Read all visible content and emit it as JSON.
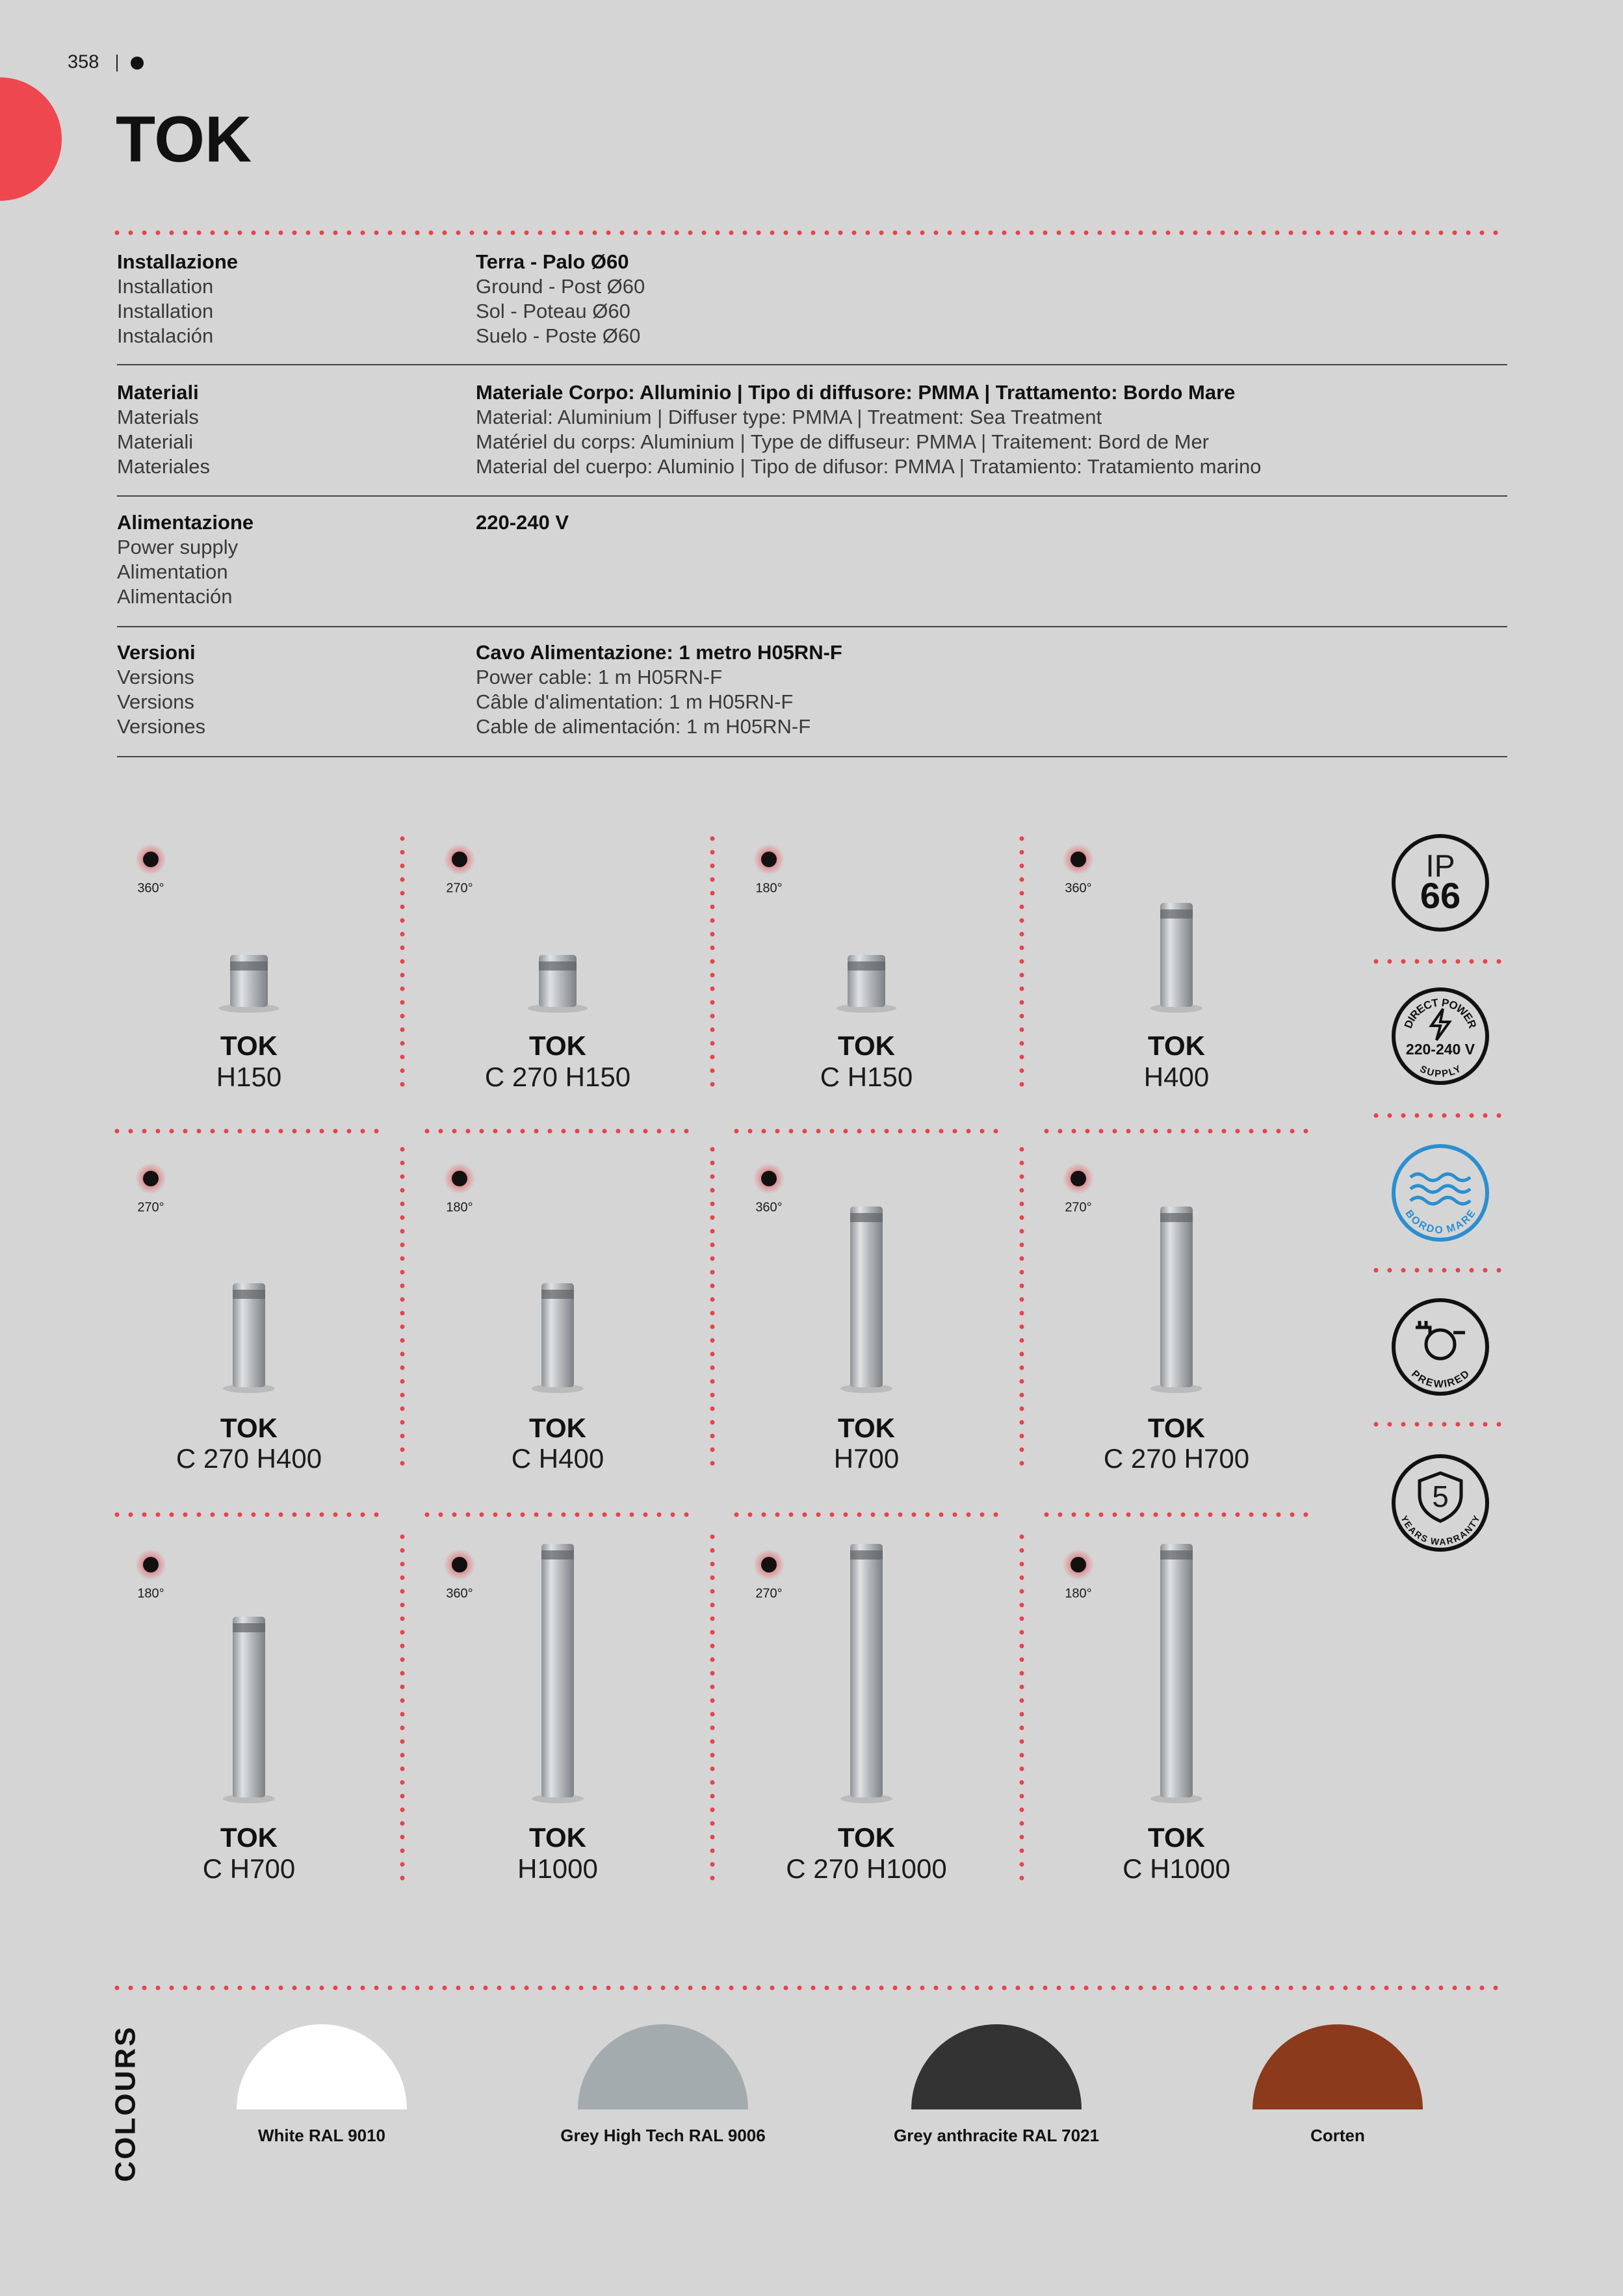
{
  "header": {
    "page_number": "358",
    "title": "TOK"
  },
  "specs": [
    {
      "labels": [
        "Installazione",
        "Installation",
        "Installation",
        "Instalación"
      ],
      "values": [
        "Terra - Palo Ø60",
        "Ground - Post Ø60",
        "Sol - Poteau Ø60",
        "Suelo - Poste Ø60"
      ]
    },
    {
      "labels": [
        "Materiali",
        "Materials",
        "Materiali",
        "Materiales"
      ],
      "values": [
        "Materiale Corpo: Alluminio | Tipo di diffusore: PMMA | Trattamento: Bordo Mare",
        "Material: Aluminium | Diffuser type: PMMA | Treatment: Sea Treatment",
        "Matériel du corps: Aluminium | Type de diffuseur: PMMA | Traitement: Bord de Mer",
        "Material del cuerpo: Aluminio | Tipo de difusor: PMMA | Tratamiento: Tratamiento marino"
      ]
    },
    {
      "labels": [
        "Alimentazione",
        "Power supply",
        "Alimentation",
        "Alimentación"
      ],
      "values": [
        "220-240 V"
      ]
    },
    {
      "labels": [
        "Versioni",
        "Versions",
        "Versions",
        "Versiones"
      ],
      "values": [
        "Cavo Alimentazione: 1 metro H05RN-F",
        "Power cable: 1 m H05RN-F",
        "Câble d'alimentation: 1 m H05RN-F",
        "Cable de alimentación: 1 m H05RN-F"
      ]
    }
  ],
  "products": [
    {
      "angle": "360°",
      "name": "TOK",
      "model": "H150"
    },
    {
      "angle": "270°",
      "name": "TOK",
      "model": "C 270 H150"
    },
    {
      "angle": "180°",
      "name": "TOK",
      "model": "C H150"
    },
    {
      "angle": "360°",
      "name": "TOK",
      "model": "H400"
    },
    {
      "angle": "270°",
      "name": "TOK",
      "model": "C 270 H400"
    },
    {
      "angle": "180°",
      "name": "TOK",
      "model": "C H400"
    },
    {
      "angle": "360°",
      "name": "TOK",
      "model": "H700"
    },
    {
      "angle": "270°",
      "name": "TOK",
      "model": "C 270 H700"
    },
    {
      "angle": "180°",
      "name": "TOK",
      "model": "C H700"
    },
    {
      "angle": "360°",
      "name": "TOK",
      "model": "H1000"
    },
    {
      "angle": "270°",
      "name": "TOK",
      "model": "C 270 H1000"
    },
    {
      "angle": "180°",
      "name": "TOK",
      "model": "C H1000"
    }
  ],
  "badges": {
    "ip": {
      "label": "IP",
      "value": "66"
    },
    "direct_power": {
      "top": "DIRECT POWER",
      "voltage": "220-240 V",
      "bottom": "SUPPLY"
    },
    "bordo_mare": "BORDO MARE",
    "prewired": "PREWIRED",
    "warranty": {
      "years": "5",
      "label": "YEARS WARRANTY"
    }
  },
  "colours": {
    "title": "COLOURS",
    "items": [
      "White RAL 9010",
      "Grey High Tech RAL 9006",
      "Grey anthracite RAL 7021",
      "Corten"
    ]
  }
}
